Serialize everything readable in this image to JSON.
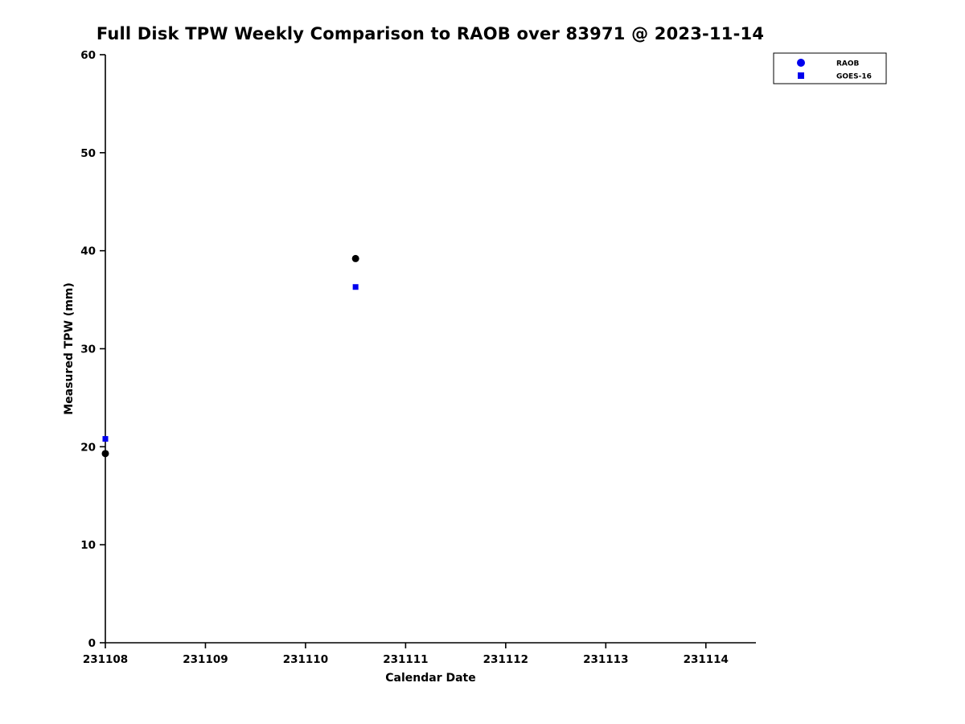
{
  "chart_data": {
    "type": "scatter",
    "title": "Full Disk TPW Weekly Comparison to RAOB over 83971 @ 2023-11-14",
    "xlabel": "Calendar Date",
    "ylabel": "Measured TPW (mm)",
    "xlim": [
      231108,
      231114.5
    ],
    "ylim": [
      0,
      60
    ],
    "xticks": [
      231108,
      231109,
      231110,
      231111,
      231112,
      231113,
      231114
    ],
    "yticks": [
      0,
      10,
      20,
      30,
      40,
      50,
      60
    ],
    "grid": false,
    "legend_position": "upper right",
    "series": [
      {
        "name": "RAOB",
        "marker": "circle",
        "point_color": "#000000",
        "legend_marker_color": "#0000ee",
        "x": [
          231108,
          231110.5
        ],
        "y": [
          19.3,
          39.2
        ]
      },
      {
        "name": "GOES-16",
        "marker": "square",
        "point_color": "#0000ee",
        "legend_marker_color": "#0000ee",
        "x": [
          231108,
          231110.5
        ],
        "y": [
          20.8,
          36.3
        ]
      }
    ]
  },
  "layout_colors": {
    "axis": "#000000",
    "background": "#ffffff"
  }
}
